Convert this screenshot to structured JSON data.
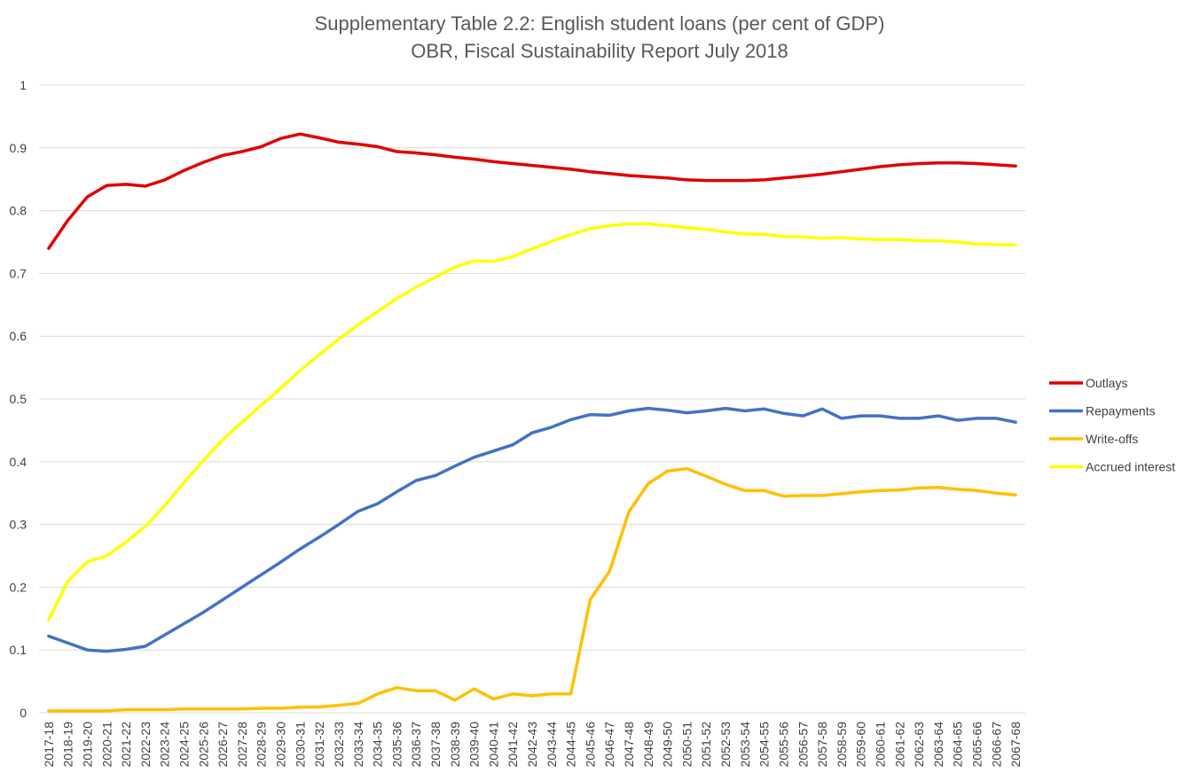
{
  "chart_data": {
    "type": "line",
    "title": "Supplementary Table 2.2: English student loans (per cent of GDP)",
    "subtitle": "OBR, Fiscal Sustainability Report July 2018",
    "xlabel": "",
    "ylabel": "",
    "ylim": [
      0,
      1
    ],
    "yticks": [
      "0",
      "0.1",
      "0.2",
      "0.3",
      "0.4",
      "0.5",
      "0.6",
      "0.7",
      "0.8",
      "0.9",
      "1"
    ],
    "grid": true,
    "legend_position": "right",
    "categories": [
      "2017-18",
      "2018-19",
      "2019-20",
      "2020-21",
      "2021-22",
      "2022-23",
      "2023-24",
      "2024-25",
      "2025-26",
      "2026-27",
      "2027-28",
      "2028-29",
      "2029-30",
      "2030-31",
      "2031-32",
      "2032-33",
      "2033-34",
      "2034-35",
      "2035-36",
      "2036-37",
      "2037-38",
      "2038-39",
      "2039-40",
      "2040-41",
      "2041-42",
      "2042-43",
      "2043-44",
      "2044-45",
      "2045-46",
      "2046-47",
      "2047-48",
      "2048-49",
      "2049-50",
      "2050-51",
      "2051-52",
      "2052-53",
      "2053-54",
      "2054-55",
      "2055-56",
      "2056-57",
      "2057-58",
      "2058-59",
      "2059-60",
      "2060-61",
      "2061-62",
      "2062-63",
      "2063-64",
      "2064-65",
      "2065-66",
      "2066-67",
      "2067-68"
    ],
    "series": [
      {
        "name": "Outlays",
        "color": "#e00000",
        "values": [
          0.74,
          0.785,
          0.822,
          0.84,
          0.842,
          0.839,
          0.849,
          0.864,
          0.877,
          0.888,
          0.894,
          0.902,
          0.915,
          0.922,
          0.916,
          0.909,
          0.906,
          0.902,
          0.894,
          0.892,
          0.889,
          0.885,
          0.882,
          0.878,
          0.875,
          0.872,
          0.869,
          0.866,
          0.862,
          0.859,
          0.856,
          0.854,
          0.852,
          0.849,
          0.848,
          0.848,
          0.848,
          0.849,
          0.852,
          0.855,
          0.858,
          0.862,
          0.866,
          0.87,
          0.873,
          0.875,
          0.876,
          0.876,
          0.875,
          0.873,
          0.871
        ]
      },
      {
        "name": "Repayments",
        "color": "#4472c4",
        "values": [
          0.122,
          0.111,
          0.1,
          0.098,
          0.101,
          0.106,
          0.124,
          0.142,
          0.16,
          0.18,
          0.2,
          0.22,
          0.24,
          0.261,
          0.28,
          0.3,
          0.321,
          0.333,
          0.352,
          0.37,
          0.378,
          0.393,
          0.407,
          0.417,
          0.427,
          0.446,
          0.455,
          0.467,
          0.475,
          0.474,
          0.481,
          0.485,
          0.482,
          0.478,
          0.481,
          0.485,
          0.481,
          0.484,
          0.477,
          0.473,
          0.484,
          0.469,
          0.473,
          0.473,
          0.469,
          0.469,
          0.473,
          0.466,
          0.469,
          0.469,
          0.463
        ]
      },
      {
        "name": "Write-offs",
        "color": "#ffc000",
        "values": [
          0.003,
          0.003,
          0.003,
          0.003,
          0.005,
          0.005,
          0.005,
          0.006,
          0.006,
          0.006,
          0.006,
          0.007,
          0.007,
          0.009,
          0.009,
          0.012,
          0.015,
          0.03,
          0.04,
          0.035,
          0.035,
          0.02,
          0.038,
          0.022,
          0.03,
          0.027,
          0.03,
          0.03,
          0.18,
          0.225,
          0.32,
          0.365,
          0.385,
          0.389,
          0.377,
          0.364,
          0.354,
          0.354,
          0.345,
          0.346,
          0.346,
          0.349,
          0.352,
          0.354,
          0.355,
          0.358,
          0.359,
          0.356,
          0.354,
          0.35,
          0.347
        ]
      },
      {
        "name": "Accrued interest",
        "color": "#ffff00",
        "values": [
          0.148,
          0.21,
          0.241,
          0.25,
          0.272,
          0.297,
          0.33,
          0.367,
          0.402,
          0.435,
          0.463,
          0.49,
          0.517,
          0.545,
          0.571,
          0.595,
          0.618,
          0.639,
          0.66,
          0.678,
          0.694,
          0.71,
          0.72,
          0.719,
          0.727,
          0.739,
          0.751,
          0.762,
          0.771,
          0.776,
          0.779,
          0.779,
          0.776,
          0.773,
          0.77,
          0.766,
          0.763,
          0.762,
          0.759,
          0.758,
          0.756,
          0.757,
          0.755,
          0.754,
          0.754,
          0.752,
          0.752,
          0.75,
          0.747,
          0.746,
          0.745
        ]
      }
    ]
  }
}
